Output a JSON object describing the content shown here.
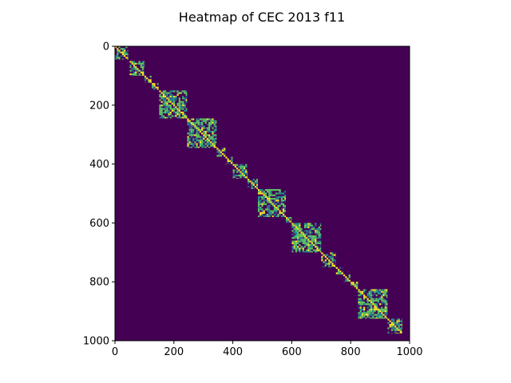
{
  "chart_data": {
    "type": "heatmap",
    "title": "Heatmap of CEC 2013 f11",
    "xlabel": "",
    "ylabel": "",
    "xlim": [
      0,
      1000
    ],
    "ylim": [
      1000,
      0
    ],
    "x_ticks": [
      "0",
      "200",
      "400",
      "600",
      "800",
      "1000"
    ],
    "y_ticks": [
      "0",
      "200",
      "400",
      "600",
      "800",
      "1000"
    ],
    "colormap": "viridis",
    "background_color": "#440154",
    "colors": [
      "#440154",
      "#3b528b",
      "#21908d",
      "#5dc963",
      "#fde725"
    ],
    "blocks": [
      {
        "start": 0,
        "end": 45,
        "density": 0.55
      },
      {
        "start": 50,
        "end": 100,
        "density": 0.65
      },
      {
        "start": 100,
        "end": 125,
        "density": 0.5
      },
      {
        "start": 125,
        "end": 148,
        "density": 0.55
      },
      {
        "start": 150,
        "end": 245,
        "density": 0.7
      },
      {
        "start": 245,
        "end": 345,
        "density": 0.7
      },
      {
        "start": 345,
        "end": 375,
        "density": 0.6
      },
      {
        "start": 375,
        "end": 400,
        "density": 0.55
      },
      {
        "start": 400,
        "end": 450,
        "density": 0.65
      },
      {
        "start": 450,
        "end": 485,
        "density": 0.5
      },
      {
        "start": 485,
        "end": 580,
        "density": 0.7
      },
      {
        "start": 580,
        "end": 600,
        "density": 0.55
      },
      {
        "start": 600,
        "end": 700,
        "density": 0.75
      },
      {
        "start": 700,
        "end": 750,
        "density": 0.65
      },
      {
        "start": 750,
        "end": 775,
        "density": 0.55
      },
      {
        "start": 775,
        "end": 800,
        "density": 0.5
      },
      {
        "start": 800,
        "end": 825,
        "density": 0.5
      },
      {
        "start": 825,
        "end": 925,
        "density": 0.75
      },
      {
        "start": 925,
        "end": 975,
        "density": 0.65
      }
    ]
  }
}
